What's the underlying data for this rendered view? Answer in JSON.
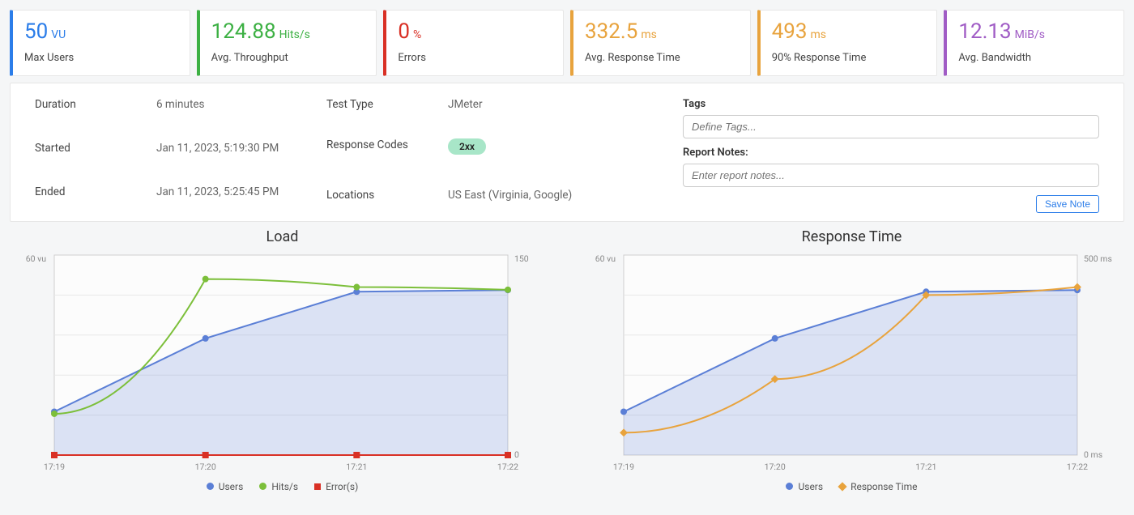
{
  "metrics": [
    {
      "value": "50",
      "unit": "VU",
      "label": "Max Users",
      "color": "#2b7de9"
    },
    {
      "value": "124.88",
      "unit": "Hits/s",
      "label": "Avg. Throughput",
      "color": "#3cb043"
    },
    {
      "value": "0",
      "unit": "%",
      "label": "Errors",
      "color": "#d93025"
    },
    {
      "value": "332.5",
      "unit": "ms",
      "label": "Avg. Response Time",
      "color": "#e8a33d"
    },
    {
      "value": "493",
      "unit": "ms",
      "label": "90% Response Time",
      "color": "#e8a33d"
    },
    {
      "value": "12.13",
      "unit": "MiB/s",
      "label": "Avg. Bandwidth",
      "color": "#a05cc5"
    }
  ],
  "details": {
    "duration_label": "Duration",
    "duration": "6 minutes",
    "started_label": "Started",
    "started": "Jan 11, 2023, 5:19:30 PM",
    "ended_label": "Ended",
    "ended": "Jan 11, 2023, 5:25:45 PM",
    "test_type_label": "Test Type",
    "test_type": "JMeter",
    "codes_label": "Response Codes",
    "codes_badge": "2xx",
    "locations_label": "Locations",
    "locations": "US East (Virginia, Google)",
    "tags_label": "Tags",
    "tags_placeholder": "Define Tags...",
    "notes_label": "Report Notes:",
    "notes_placeholder": "Enter report notes...",
    "save_note": "Save Note"
  },
  "chart_style": {
    "plot_bg": "#fcfcfc",
    "grid_color": "#e8e8e8",
    "border_color": "#cfcfcf",
    "users_color": "#5b7fd6",
    "users_fill": "rgba(91,127,214,0.20)",
    "hits_color": "#7cbf3a",
    "errors_color": "#d93025",
    "rt_color": "#e8a33d",
    "tick_fontsize": 10.5,
    "line_width": 2,
    "marker_radius": 4
  },
  "load_chart": {
    "title": "Load",
    "x_labels": [
      "17:19",
      "17:20",
      "17:21",
      "17:22"
    ],
    "y_left_label": "60 vu",
    "y_right_top": "150",
    "y_right_bot": "0",
    "y_left_max": 60,
    "y_right_max": 150,
    "users": [
      13,
      35,
      49,
      49.5
    ],
    "hits": [
      31,
      132,
      126,
      124
    ],
    "errors": [
      0,
      0,
      0,
      0
    ],
    "legend": {
      "users": "Users",
      "hits": "Hits/s",
      "errors": "Error(s)"
    }
  },
  "rt_chart": {
    "title": "Response Time",
    "x_labels": [
      "17:19",
      "17:20",
      "17:21",
      "17:22"
    ],
    "y_left_label": "60 vu",
    "y_right_top": "500 ms",
    "y_right_bot": "0 ms",
    "y_left_max": 60,
    "y_right_max": 500,
    "users": [
      13,
      35,
      49,
      49.5
    ],
    "rt": [
      56,
      190,
      400,
      420
    ],
    "legend": {
      "users": "Users",
      "rt": "Response Time"
    }
  }
}
